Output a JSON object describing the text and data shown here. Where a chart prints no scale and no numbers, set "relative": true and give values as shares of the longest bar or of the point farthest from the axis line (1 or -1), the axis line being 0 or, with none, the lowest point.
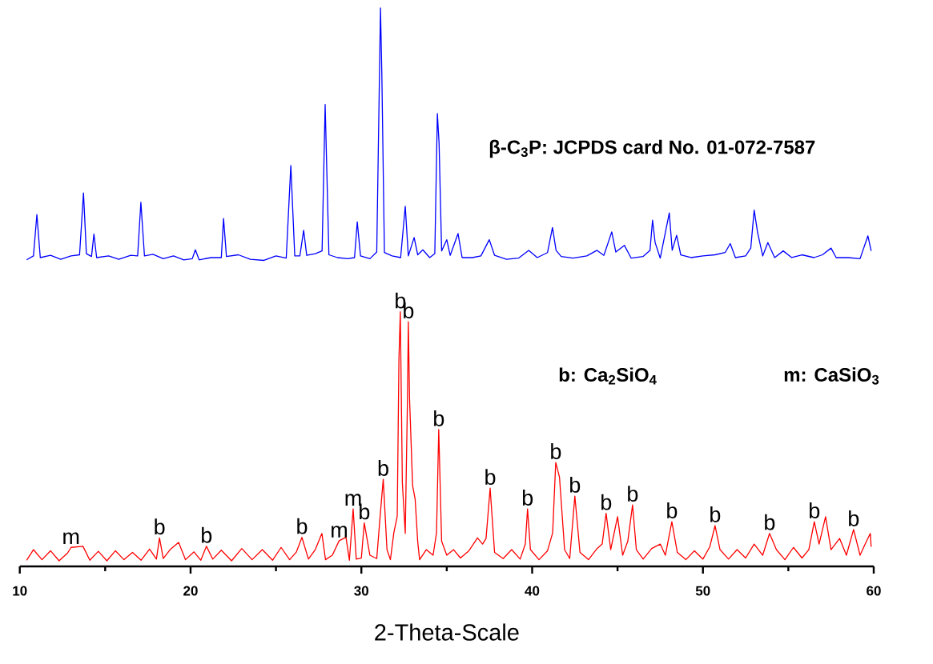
{
  "chart_data": {
    "type": "line",
    "relative": true,
    "xlabel": "2-Theta-Scale",
    "xlim": [
      10,
      60
    ],
    "xticks": [
      10,
      20,
      30,
      40,
      50,
      60
    ],
    "series": [
      {
        "color": "#0000ff",
        "x": [
          10.4,
          10.8,
          11.0,
          11.2,
          11.8,
          12.4,
          13.0,
          13.5,
          13.73,
          13.9,
          14.2,
          14.34,
          14.5,
          15.2,
          15.8,
          16.5,
          16.9,
          17.09,
          17.3,
          17.8,
          18.4,
          19.0,
          19.6,
          20.1,
          20.28,
          20.5,
          21.2,
          21.8,
          21.93,
          22.1,
          22.8,
          23.5,
          24.3,
          25.0,
          25.6,
          25.87,
          26.1,
          26.4,
          26.62,
          26.8,
          27.3,
          27.7,
          27.88,
          28.1,
          28.6,
          29.2,
          29.6,
          29.76,
          29.95,
          30.5,
          30.9,
          31.12,
          31.2,
          31.35,
          31.8,
          32.3,
          32.57,
          32.75,
          33.09,
          33.3,
          33.6,
          34.0,
          34.3,
          34.45,
          34.55,
          34.7,
          35.0,
          35.2,
          35.66,
          35.9,
          36.5,
          37.0,
          37.49,
          37.8,
          38.5,
          39.2,
          39.8,
          40.3,
          40.9,
          41.19,
          41.4,
          41.7,
          42.4,
          43.2,
          43.8,
          44.2,
          44.66,
          44.9,
          45.4,
          45.8,
          46.5,
          46.9,
          47.05,
          47.2,
          47.5,
          48.03,
          48.2,
          48.46,
          48.7,
          49.3,
          50.0,
          50.7,
          51.3,
          51.6,
          51.9,
          52.5,
          52.8,
          53.0,
          53.2,
          53.5,
          53.8,
          54.2,
          54.7,
          55.2,
          55.8,
          56.5,
          57.0,
          57.5,
          57.8,
          58.5,
          59.2,
          59.66,
          59.85
        ],
        "values": [
          0.549,
          0.556,
          0.63,
          0.553,
          0.557,
          0.55,
          0.556,
          0.558,
          0.669,
          0.56,
          0.555,
          0.595,
          0.553,
          0.556,
          0.55,
          0.557,
          0.556,
          0.652,
          0.556,
          0.559,
          0.551,
          0.556,
          0.549,
          0.551,
          0.567,
          0.549,
          0.553,
          0.553,
          0.623,
          0.555,
          0.558,
          0.55,
          0.548,
          0.556,
          0.552,
          0.718,
          0.556,
          0.556,
          0.602,
          0.557,
          0.56,
          0.565,
          0.827,
          0.558,
          0.553,
          0.551,
          0.553,
          0.617,
          0.556,
          0.551,
          0.563,
          1.0,
          0.88,
          0.562,
          0.556,
          0.553,
          0.645,
          0.556,
          0.589,
          0.558,
          0.567,
          0.553,
          0.56,
          0.811,
          0.758,
          0.565,
          0.585,
          0.557,
          0.596,
          0.553,
          0.553,
          0.556,
          0.585,
          0.557,
          0.55,
          0.552,
          0.566,
          0.553,
          0.562,
          0.607,
          0.566,
          0.555,
          0.552,
          0.556,
          0.566,
          0.557,
          0.599,
          0.563,
          0.575,
          0.552,
          0.555,
          0.566,
          0.62,
          0.58,
          0.552,
          0.633,
          0.566,
          0.593,
          0.558,
          0.553,
          0.556,
          0.558,
          0.562,
          0.578,
          0.553,
          0.556,
          0.57,
          0.638,
          0.598,
          0.556,
          0.58,
          0.553,
          0.565,
          0.553,
          0.558,
          0.553,
          0.558,
          0.57,
          0.553,
          0.553,
          0.551,
          0.592,
          0.565
        ]
      },
      {
        "color": "#ff0000",
        "x": [
          10.4,
          10.8,
          11.3,
          11.8,
          12.3,
          12.8,
          13.0,
          13.7,
          14.1,
          14.6,
          15.1,
          15.6,
          16.1,
          16.6,
          17.1,
          17.6,
          18.0,
          18.18,
          18.4,
          18.8,
          19.3,
          19.7,
          20.2,
          20.6,
          20.93,
          21.3,
          21.8,
          22.4,
          23.0,
          23.6,
          24.2,
          24.8,
          25.3,
          25.8,
          26.2,
          26.52,
          26.9,
          27.3,
          27.69,
          27.9,
          28.3,
          28.7,
          29.1,
          29.3,
          29.52,
          29.7,
          30.0,
          30.17,
          30.5,
          30.9,
          31.1,
          31.28,
          31.5,
          31.7,
          31.9,
          32.1,
          32.2,
          32.28,
          32.4,
          32.57,
          32.7,
          32.75,
          32.82,
          33.0,
          33.15,
          33.3,
          33.41,
          33.8,
          34.2,
          34.4,
          34.53,
          34.7,
          35.0,
          35.4,
          35.8,
          36.3,
          36.8,
          37.1,
          37.3,
          37.54,
          37.8,
          38.3,
          38.8,
          39.3,
          39.6,
          39.73,
          39.9,
          40.4,
          40.9,
          41.2,
          41.38,
          41.6,
          41.9,
          42.2,
          42.5,
          42.8,
          43.3,
          43.8,
          44.1,
          44.33,
          44.6,
          45.0,
          45.3,
          45.6,
          45.88,
          46.1,
          46.5,
          47.0,
          47.5,
          47.8,
          48.18,
          48.5,
          49.0,
          49.5,
          50.0,
          50.4,
          50.71,
          51.0,
          51.5,
          52.0,
          52.5,
          53.0,
          53.5,
          53.9,
          54.3,
          54.8,
          55.3,
          55.8,
          56.2,
          56.52,
          56.8,
          57.18,
          57.5,
          58.0,
          58.4,
          58.82,
          59.2,
          59.5,
          59.8,
          59.85
        ],
        "values": [
          0.011,
          0.03,
          0.012,
          0.028,
          0.01,
          0.024,
          0.034,
          0.036,
          0.011,
          0.027,
          0.01,
          0.028,
          0.012,
          0.025,
          0.011,
          0.031,
          0.013,
          0.051,
          0.014,
          0.03,
          0.043,
          0.012,
          0.026,
          0.011,
          0.036,
          0.013,
          0.029,
          0.01,
          0.032,
          0.012,
          0.03,
          0.011,
          0.034,
          0.012,
          0.026,
          0.052,
          0.013,
          0.03,
          0.059,
          0.012,
          0.02,
          0.046,
          0.052,
          0.011,
          0.103,
          0.013,
          0.015,
          0.078,
          0.02,
          0.014,
          0.09,
          0.156,
          0.03,
          0.012,
          0.06,
          0.09,
          0.372,
          0.456,
          0.15,
          0.059,
          0.3,
          0.438,
          0.302,
          0.145,
          0.12,
          0.044,
          0.012,
          0.03,
          0.02,
          0.06,
          0.245,
          0.045,
          0.02,
          0.03,
          0.015,
          0.028,
          0.051,
          0.04,
          0.05,
          0.14,
          0.025,
          0.014,
          0.03,
          0.013,
          0.04,
          0.103,
          0.03,
          0.012,
          0.028,
          0.06,
          0.186,
          0.16,
          0.03,
          0.014,
          0.126,
          0.025,
          0.012,
          0.032,
          0.04,
          0.095,
          0.03,
          0.089,
          0.02,
          0.045,
          0.11,
          0.03,
          0.013,
          0.032,
          0.04,
          0.02,
          0.08,
          0.025,
          0.012,
          0.028,
          0.013,
          0.035,
          0.073,
          0.03,
          0.013,
          0.03,
          0.015,
          0.04,
          0.02,
          0.059,
          0.03,
          0.012,
          0.034,
          0.015,
          0.03,
          0.08,
          0.04,
          0.089,
          0.03,
          0.05,
          0.02,
          0.066,
          0.02,
          0.04,
          0.059,
          0.035
        ]
      }
    ],
    "annotations": [
      {
        "text": "m",
        "x": 13.0,
        "y": 0.034
      },
      {
        "text": "b",
        "x": 18.18,
        "y": 0.051
      },
      {
        "text": "b",
        "x": 20.93,
        "y": 0.036
      },
      {
        "text": "b",
        "x": 26.52,
        "y": 0.052
      },
      {
        "text": "m",
        "x": 28.7,
        "y": 0.046
      },
      {
        "text": "m",
        "x": 29.52,
        "y": 0.103
      },
      {
        "text": "b",
        "x": 30.17,
        "y": 0.078
      },
      {
        "text": "b",
        "x": 31.28,
        "y": 0.156
      },
      {
        "text": "b",
        "x": 32.28,
        "y": 0.456
      },
      {
        "text": "b",
        "x": 32.75,
        "y": 0.438
      },
      {
        "text": "b",
        "x": 34.53,
        "y": 0.245
      },
      {
        "text": "b",
        "x": 37.54,
        "y": 0.14
      },
      {
        "text": "b",
        "x": 39.73,
        "y": 0.103
      },
      {
        "text": "b",
        "x": 41.38,
        "y": 0.186
      },
      {
        "text": "b",
        "x": 42.5,
        "y": 0.126
      },
      {
        "text": "b",
        "x": 44.33,
        "y": 0.095
      },
      {
        "text": "b",
        "x": 45.88,
        "y": 0.11
      },
      {
        "text": "b",
        "x": 48.18,
        "y": 0.08
      },
      {
        "text": "b",
        "x": 50.71,
        "y": 0.073
      },
      {
        "text": "b",
        "x": 53.9,
        "y": 0.059
      },
      {
        "text": "b",
        "x": 56.52,
        "y": 0.08
      },
      {
        "text": "b",
        "x": 58.82,
        "y": 0.066
      },
      "β-C$_{3}$P: JCPDS card No. 01-072-7587",
      "b: Ca$_{2}$SiO$_{4}$",
      "m: CaSiO$_{3}$"
    ]
  }
}
